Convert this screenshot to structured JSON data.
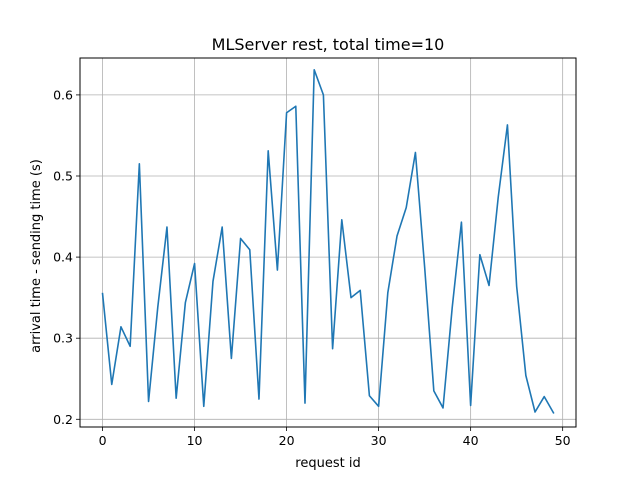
{
  "chart_data": {
    "type": "line",
    "title": "MLServer rest, total time=10",
    "xlabel": "request id",
    "ylabel": "arrival time - sending time (s)",
    "xlim": [
      -2.45,
      51.45
    ],
    "ylim": [
      0.1905,
      0.6455
    ],
    "xticks": [
      0,
      10,
      20,
      30,
      40,
      50
    ],
    "yticks": [
      0.2,
      0.3,
      0.4,
      0.5,
      0.6
    ],
    "xtick_labels": [
      "0",
      "10",
      "20",
      "30",
      "40",
      "50"
    ],
    "ytick_labels": [
      "0.2",
      "0.3",
      "0.4",
      "0.5",
      "0.6"
    ],
    "grid": true,
    "line_color": "#1f77b4",
    "series": [
      {
        "x": [
          0,
          1,
          2,
          3,
          4,
          5,
          6,
          7,
          8,
          9,
          10,
          11,
          12,
          13,
          14,
          15,
          16,
          17,
          18,
          19,
          20,
          21,
          22,
          23,
          24,
          25,
          26,
          27,
          28,
          29,
          30,
          31,
          32,
          33,
          34,
          35,
          36,
          37,
          38,
          39,
          40,
          41,
          42,
          43,
          44,
          45,
          46,
          47,
          48,
          49
        ],
        "values": [
          0.355,
          0.243,
          0.314,
          0.29,
          0.515,
          0.222,
          0.338,
          0.437,
          0.226,
          0.344,
          0.392,
          0.216,
          0.37,
          0.437,
          0.275,
          0.423,
          0.409,
          0.225,
          0.531,
          0.384,
          0.578,
          0.586,
          0.22,
          0.631,
          0.6,
          0.287,
          0.446,
          0.35,
          0.359,
          0.229,
          0.216,
          0.356,
          0.426,
          0.461,
          0.529,
          0.388,
          0.235,
          0.214,
          0.338,
          0.443,
          0.217,
          0.403,
          0.365,
          0.474,
          0.563,
          0.364,
          0.254,
          0.209,
          0.228,
          0.208
        ]
      }
    ]
  }
}
